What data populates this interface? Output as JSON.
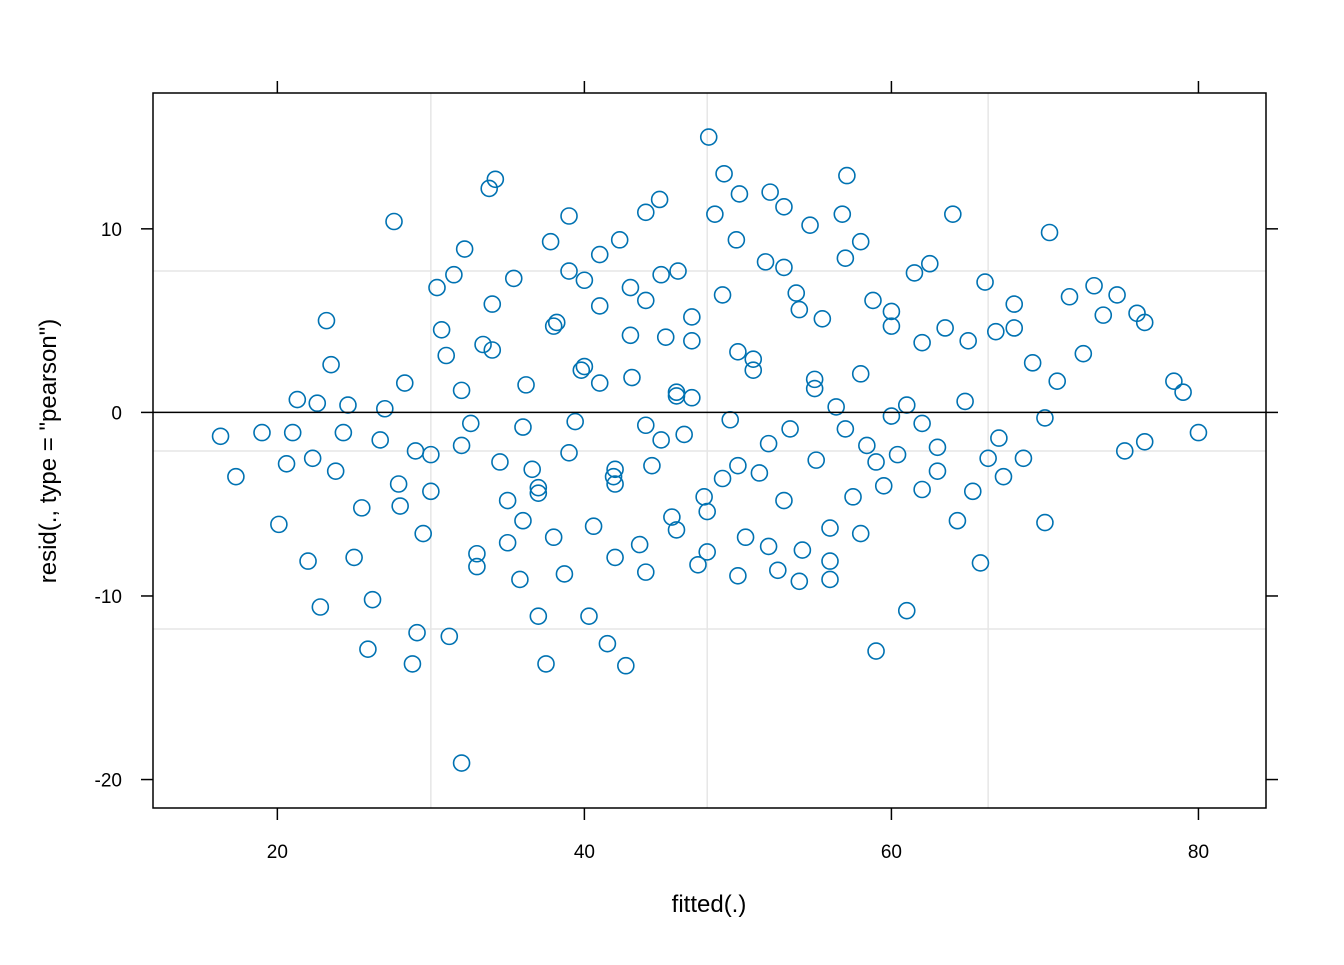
{
  "chart_data": {
    "type": "scatter",
    "xlabel": "fitted(.)",
    "ylabel": "resid(., type = \"pearson\")",
    "color": "#0072B2",
    "xlim": [
      11.9,
      84.4
    ],
    "ylim": [
      -21.55,
      17.4
    ],
    "xticks": [
      20,
      40,
      60,
      80
    ],
    "yticks": [
      -20,
      -10,
      0,
      10
    ],
    "xgrid": [
      30,
      48,
      66.3
    ],
    "ygrid": [
      7.7,
      -2.1,
      -11.8
    ],
    "hline": 0,
    "x": [
      16.3,
      17.3,
      19,
      20.1,
      20.6,
      21,
      21.3,
      22,
      22.3,
      22.6,
      22.8,
      23.2,
      23.5,
      23.8,
      24.3,
      24.6,
      25,
      25.5,
      25.9,
      26.2,
      26.7,
      27,
      27.6,
      27.9,
      28.3,
      28.8,
      29.1,
      29.5,
      30,
      30.4,
      30.7,
      31.2,
      31.5,
      32,
      32.2,
      32.6,
      33,
      33.4,
      33.8,
      34.2,
      34.5,
      35,
      35.4,
      35.8,
      36.2,
      36.6,
      37,
      37.5,
      37.8,
      38.2,
      38.7,
      39,
      39.4,
      39.8,
      40.3,
      40.6,
      41,
      41.5,
      41.9,
      42.3,
      42.7,
      43.1,
      43.6,
      44,
      44.4,
      44.9,
      45.3,
      45.7,
      46.1,
      46.5,
      47,
      47.4,
      47.8,
      48.1,
      48.5,
      49.1,
      49.5,
      49.9,
      50.1,
      50.5,
      51,
      51.4,
      51.8,
      52.1,
      52.6,
      53,
      53.4,
      53.8,
      54.2,
      54.7,
      55.1,
      55.5,
      56,
      56.4,
      56.8,
      57.1,
      57.5,
      58,
      58.4,
      58.8,
      59,
      59.5,
      60,
      60.4,
      61,
      61.5,
      62,
      62.5,
      63,
      63.5,
      64,
      64.3,
      64.8,
      65.3,
      65.8,
      66.1,
      66.3,
      66.8,
      67.3,
      68,
      68.6,
      69.2,
      70,
      70.3,
      70.8,
      71.6,
      72.5,
      73.2,
      73.8,
      74.7,
      75.2,
      76,
      76.5,
      76.5,
      78.4,
      79,
      80,
      28,
      30,
      32,
      34,
      36,
      38,
      40,
      42,
      44,
      46,
      48,
      50,
      52,
      54,
      56,
      58,
      60,
      62,
      35,
      37,
      39,
      41,
      43,
      45,
      47,
      49,
      51,
      53,
      55,
      57,
      59,
      61,
      63,
      33,
      36,
      38,
      40,
      42,
      44,
      46,
      48,
      50,
      52,
      54,
      56,
      58,
      31,
      34,
      39,
      41,
      43,
      45,
      47,
      49,
      53,
      57,
      60,
      65,
      68,
      29,
      32,
      37,
      42,
      44,
      46,
      50,
      55,
      62,
      67,
      70
    ],
    "y": [
      -1.3,
      -3.5,
      -1.1,
      -6.1,
      -2.8,
      -1.1,
      0.7,
      -8.1,
      -2.5,
      0.5,
      -10.6,
      5,
      2.6,
      -3.2,
      -1.1,
      0.4,
      -7.9,
      -5.2,
      -12.9,
      -10.2,
      -1.5,
      0.2,
      10.4,
      -3.9,
      1.6,
      -13.7,
      -12,
      -6.6,
      -4.3,
      6.8,
      4.5,
      -12.2,
      7.5,
      -19.1,
      8.9,
      -0.6,
      -7.7,
      3.7,
      12.2,
      12.7,
      -2.7,
      -4.8,
      7.3,
      -9.1,
      1.5,
      -3.1,
      -11.1,
      -13.7,
      9.3,
      4.9,
      -8.8,
      10.7,
      -0.5,
      2.3,
      -11.1,
      -6.2,
      5.8,
      -12.6,
      -3.5,
      9.4,
      -13.8,
      1.9,
      -7.2,
      10.9,
      -2.9,
      11.6,
      4.1,
      -5.7,
      7.7,
      -1.2,
      3.9,
      -8.3,
      -4.6,
      15,
      10.8,
      13,
      -0.4,
      9.4,
      11.9,
      -6.8,
      2.3,
      -3.3,
      8.2,
      12,
      -8.6,
      11.2,
      -0.9,
      6.5,
      -7.5,
      10.2,
      -2.6,
      5.1,
      -9.1,
      0.3,
      10.8,
      12.9,
      -4.6,
      9.3,
      -1.8,
      6.1,
      -13,
      -4,
      4.7,
      -2.3,
      -10.8,
      7.6,
      -4.2,
      8.1,
      -1.9,
      4.6,
      10.8,
      -5.9,
      0.6,
      -4.3,
      -8.2,
      7.1,
      -2.5,
      4.4,
      -3.5,
      5.9,
      -2.5,
      2.7,
      -6,
      9.8,
      1.7,
      6.3,
      3.2,
      6.9,
      5.3,
      6.4,
      -2.1,
      5.4,
      4.9,
      -1.6,
      1.7,
      1.1,
      -1.1,
      -5.1,
      -2.3,
      1.2,
      3.4,
      -0.8,
      4.7,
      2.5,
      -3.9,
      6.1,
      0.9,
      -5.4,
      3.3,
      -1.7,
      5.6,
      -6.3,
      2.1,
      -0.2,
      3.8,
      -7.1,
      -4.4,
      -2.2,
      1.6,
      4.2,
      -1.5,
      0.8,
      -3.6,
      2.9,
      -4.8,
      1.3,
      -0.9,
      -2.7,
      0.4,
      -3.2,
      -8.4,
      -5.9,
      -6.8,
      7.2,
      -7.9,
      -8.7,
      -6.4,
      -7.6,
      -8.9,
      -7.3,
      -9.2,
      -8.1,
      -6.6,
      3.1,
      5.9,
      7.7,
      8.6,
      6.8,
      7.5,
      5.2,
      6.4,
      7.9,
      8.4,
      5.5,
      3.9,
      4.6,
      -2.1,
      -1.8,
      -4.1,
      -3.1,
      -0.7,
      1.1,
      -2.9,
      1.8,
      -0.6,
      -1.4,
      -0.3
    ]
  }
}
